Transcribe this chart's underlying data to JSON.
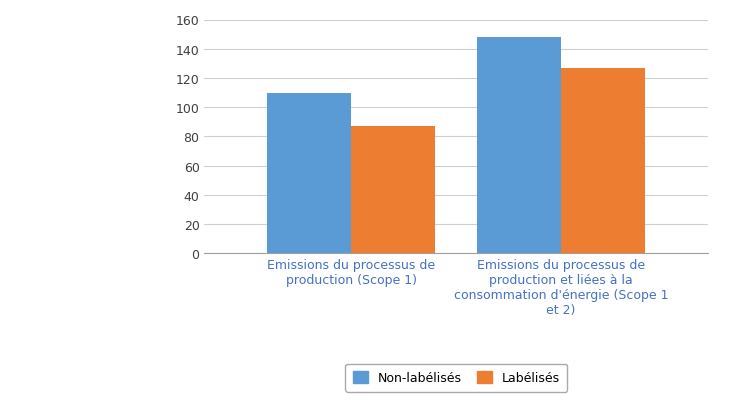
{
  "categories": [
    "Emissions du processus de\nproduction (Scope 1)",
    "Emissions du processus de\nproduction et liées à la\nconsommation d'énergie (Scope 1\net 2)"
  ],
  "non_labelises": [
    110,
    148
  ],
  "labelises": [
    87,
    127
  ],
  "color_non_labelises": "#5B9BD5",
  "color_labelises": "#ED7D31",
  "ylim": [
    0,
    160
  ],
  "yticks": [
    0,
    20,
    40,
    60,
    80,
    100,
    120,
    140,
    160
  ],
  "legend_non_labelises": "Non-labélisés",
  "legend_labelises": "Labélisés",
  "background_color": "#ffffff",
  "bar_width": 0.2,
  "x_positions": [
    0.35,
    0.85
  ],
  "xlim": [
    0.0,
    1.2
  ],
  "xlabel_color": "#4472C4",
  "tick_label_fontsize": 9
}
